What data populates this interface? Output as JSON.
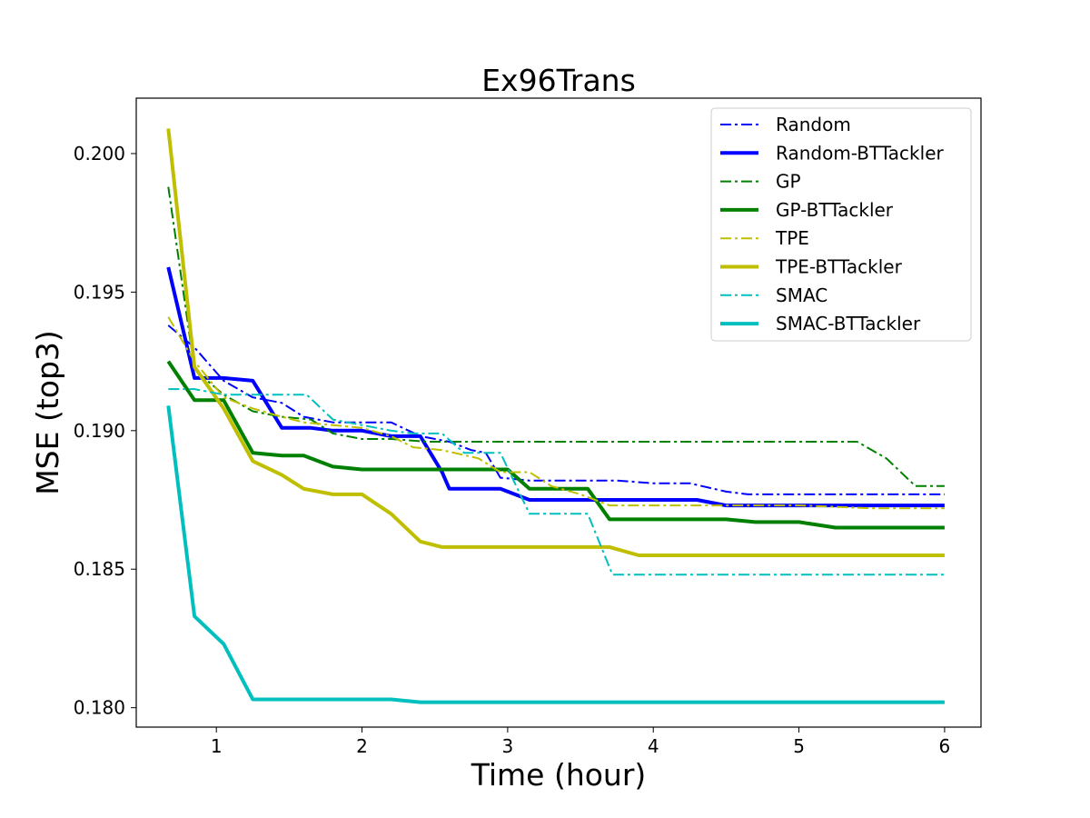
{
  "chart_data": {
    "type": "line",
    "title": "Ex96Trans",
    "xlabel": "Time (hour)",
    "ylabel": "MSE  (top3)",
    "xlim": [
      0.45,
      6.25
    ],
    "ylim": [
      0.1793,
      0.202
    ],
    "xticks": [
      1,
      2,
      3,
      4,
      5,
      6
    ],
    "yticks": [
      0.18,
      0.185,
      0.19,
      0.195,
      0.2
    ],
    "ytick_labels": [
      "0.180",
      "0.185",
      "0.190",
      "0.195",
      "0.200"
    ],
    "grid": false,
    "legend_position": "top-right",
    "series": [
      {
        "name": "Random",
        "color": "#0000ff",
        "style": "dashdot",
        "width": 2,
        "x": [
          0.67,
          0.85,
          1.05,
          1.25,
          1.45,
          1.6,
          1.8,
          2.0,
          2.2,
          2.4,
          2.6,
          2.75,
          2.85,
          2.95,
          3.15,
          3.5,
          3.75,
          4.0,
          4.25,
          4.5,
          4.65,
          5.0,
          5.5,
          6.0
        ],
        "y": [
          0.1938,
          0.193,
          0.1918,
          0.1912,
          0.191,
          0.1905,
          0.1903,
          0.1903,
          0.1903,
          0.1898,
          0.1896,
          0.1893,
          0.1892,
          0.1883,
          0.1882,
          0.1882,
          0.1882,
          0.1881,
          0.1881,
          0.1878,
          0.1877,
          0.1877,
          0.1877,
          0.1877
        ]
      },
      {
        "name": "Random-BTTackler",
        "color": "#0000ff",
        "style": "solid",
        "width": 4,
        "x": [
          0.67,
          0.85,
          1.05,
          1.25,
          1.45,
          1.65,
          1.8,
          2.0,
          2.2,
          2.4,
          2.55,
          2.6,
          2.8,
          2.95,
          3.15,
          3.35,
          3.5,
          3.7,
          3.9,
          4.1,
          4.3,
          4.5,
          5.0,
          5.5,
          6.0
        ],
        "y": [
          0.1959,
          0.1919,
          0.1919,
          0.1918,
          0.1901,
          0.1901,
          0.19,
          0.19,
          0.1898,
          0.1898,
          0.1885,
          0.1879,
          0.1879,
          0.1879,
          0.1875,
          0.1875,
          0.1875,
          0.1875,
          0.1875,
          0.1875,
          0.1875,
          0.1873,
          0.1873,
          0.1873,
          0.1873
        ]
      },
      {
        "name": "GP",
        "color": "#008000",
        "style": "dashdot",
        "width": 2,
        "x": [
          0.67,
          0.85,
          1.05,
          1.25,
          1.45,
          1.65,
          1.8,
          2.0,
          2.2,
          2.45,
          2.6,
          3.0,
          3.5,
          4.0,
          4.5,
          5.0,
          5.4,
          5.6,
          5.8,
          6.0
        ],
        "y": [
          0.1988,
          0.1922,
          0.1913,
          0.1907,
          0.1905,
          0.1904,
          0.1899,
          0.1897,
          0.1897,
          0.1896,
          0.1896,
          0.1896,
          0.1896,
          0.1896,
          0.1896,
          0.1896,
          0.1896,
          0.189,
          0.188,
          0.188
        ]
      },
      {
        "name": "GP-BTTackler",
        "color": "#008000",
        "style": "solid",
        "width": 4,
        "x": [
          0.67,
          0.85,
          1.05,
          1.25,
          1.45,
          1.6,
          1.8,
          2.0,
          2.2,
          2.5,
          2.8,
          3.0,
          3.15,
          3.35,
          3.55,
          3.7,
          3.9,
          4.2,
          4.5,
          4.7,
          5.0,
          5.25,
          5.5,
          6.0
        ],
        "y": [
          0.1925,
          0.1911,
          0.1911,
          0.1892,
          0.1891,
          0.1891,
          0.1887,
          0.1886,
          0.1886,
          0.1886,
          0.1886,
          0.1886,
          0.1879,
          0.1879,
          0.1879,
          0.1868,
          0.1868,
          0.1868,
          0.1868,
          0.1867,
          0.1867,
          0.1865,
          0.1865,
          0.1865
        ]
      },
      {
        "name": "TPE",
        "color": "#bfbf00",
        "style": "dashdot",
        "width": 2,
        "x": [
          0.67,
          0.85,
          1.05,
          1.25,
          1.45,
          1.6,
          1.8,
          2.0,
          2.2,
          2.35,
          2.55,
          2.8,
          2.95,
          3.15,
          3.3,
          3.5,
          3.7,
          4.0,
          4.5,
          5.0,
          5.5,
          6.0
        ],
        "y": [
          0.1941,
          0.1925,
          0.1912,
          0.1908,
          0.1905,
          0.1903,
          0.1902,
          0.1901,
          0.1898,
          0.1894,
          0.1893,
          0.189,
          0.1885,
          0.1885,
          0.188,
          0.1877,
          0.1873,
          0.1873,
          0.1873,
          0.1873,
          0.1872,
          0.1872
        ]
      },
      {
        "name": "TPE-BTTackler",
        "color": "#bfbf00",
        "style": "solid",
        "width": 4,
        "x": [
          0.67,
          0.85,
          1.05,
          1.25,
          1.45,
          1.6,
          1.8,
          2.0,
          2.2,
          2.4,
          2.55,
          2.8,
          3.0,
          3.2,
          3.5,
          3.7,
          3.9,
          4.0,
          4.5,
          5.0,
          5.5,
          6.0
        ],
        "y": [
          0.2009,
          0.1923,
          0.1908,
          0.1889,
          0.1884,
          0.1879,
          0.1877,
          0.1877,
          0.187,
          0.186,
          0.1858,
          0.1858,
          0.1858,
          0.1858,
          0.1858,
          0.1858,
          0.1855,
          0.1855,
          0.1855,
          0.1855,
          0.1855,
          0.1855
        ]
      },
      {
        "name": "SMAC",
        "color": "#00bfbf",
        "style": "dashdot",
        "width": 2,
        "x": [
          0.67,
          0.85,
          1.05,
          1.25,
          1.45,
          1.62,
          1.8,
          2.0,
          2.2,
          2.35,
          2.55,
          2.7,
          2.95,
          3.15,
          3.35,
          3.55,
          3.72,
          4.0,
          4.5,
          5.0,
          5.5,
          6.0
        ],
        "y": [
          0.1915,
          0.1915,
          0.1913,
          0.1913,
          0.1913,
          0.1913,
          0.1904,
          0.1902,
          0.19,
          0.1899,
          0.1899,
          0.1892,
          0.1892,
          0.187,
          0.187,
          0.187,
          0.1848,
          0.1848,
          0.1848,
          0.1848,
          0.1848,
          0.1848
        ]
      },
      {
        "name": "SMAC-BTTackler",
        "color": "#00bfbf",
        "style": "solid",
        "width": 4,
        "x": [
          0.67,
          0.85,
          1.05,
          1.25,
          1.5,
          1.8,
          2.0,
          2.2,
          2.4,
          3.0,
          4.0,
          5.0,
          6.0
        ],
        "y": [
          0.1909,
          0.1833,
          0.1823,
          0.1803,
          0.1803,
          0.1803,
          0.1803,
          0.1803,
          0.1802,
          0.1802,
          0.1802,
          0.1802,
          0.1802
        ]
      }
    ]
  }
}
